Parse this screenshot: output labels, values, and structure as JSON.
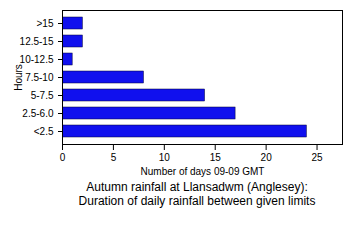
{
  "chart_data": {
    "type": "bar",
    "orientation": "horizontal",
    "title": "Autumn rainfall at Llansadwm (Anglesey):",
    "subtitle": "Duration of daily rainfall between given limits",
    "x_label": "Number of days 09-09 GMT",
    "y_label": "Hours",
    "categories": [
      ">15",
      "12.5-15",
      "10-12.5",
      "7.5-10",
      "5-7.5",
      "2.5-6.0",
      "<2.5"
    ],
    "values": [
      2,
      2,
      1,
      8,
      14,
      17,
      24
    ],
    "color": "#1010ee",
    "xlim": [
      0,
      27.5
    ],
    "xticks": [
      0,
      5,
      10,
      15,
      20,
      25
    ],
    "grid": false
  }
}
